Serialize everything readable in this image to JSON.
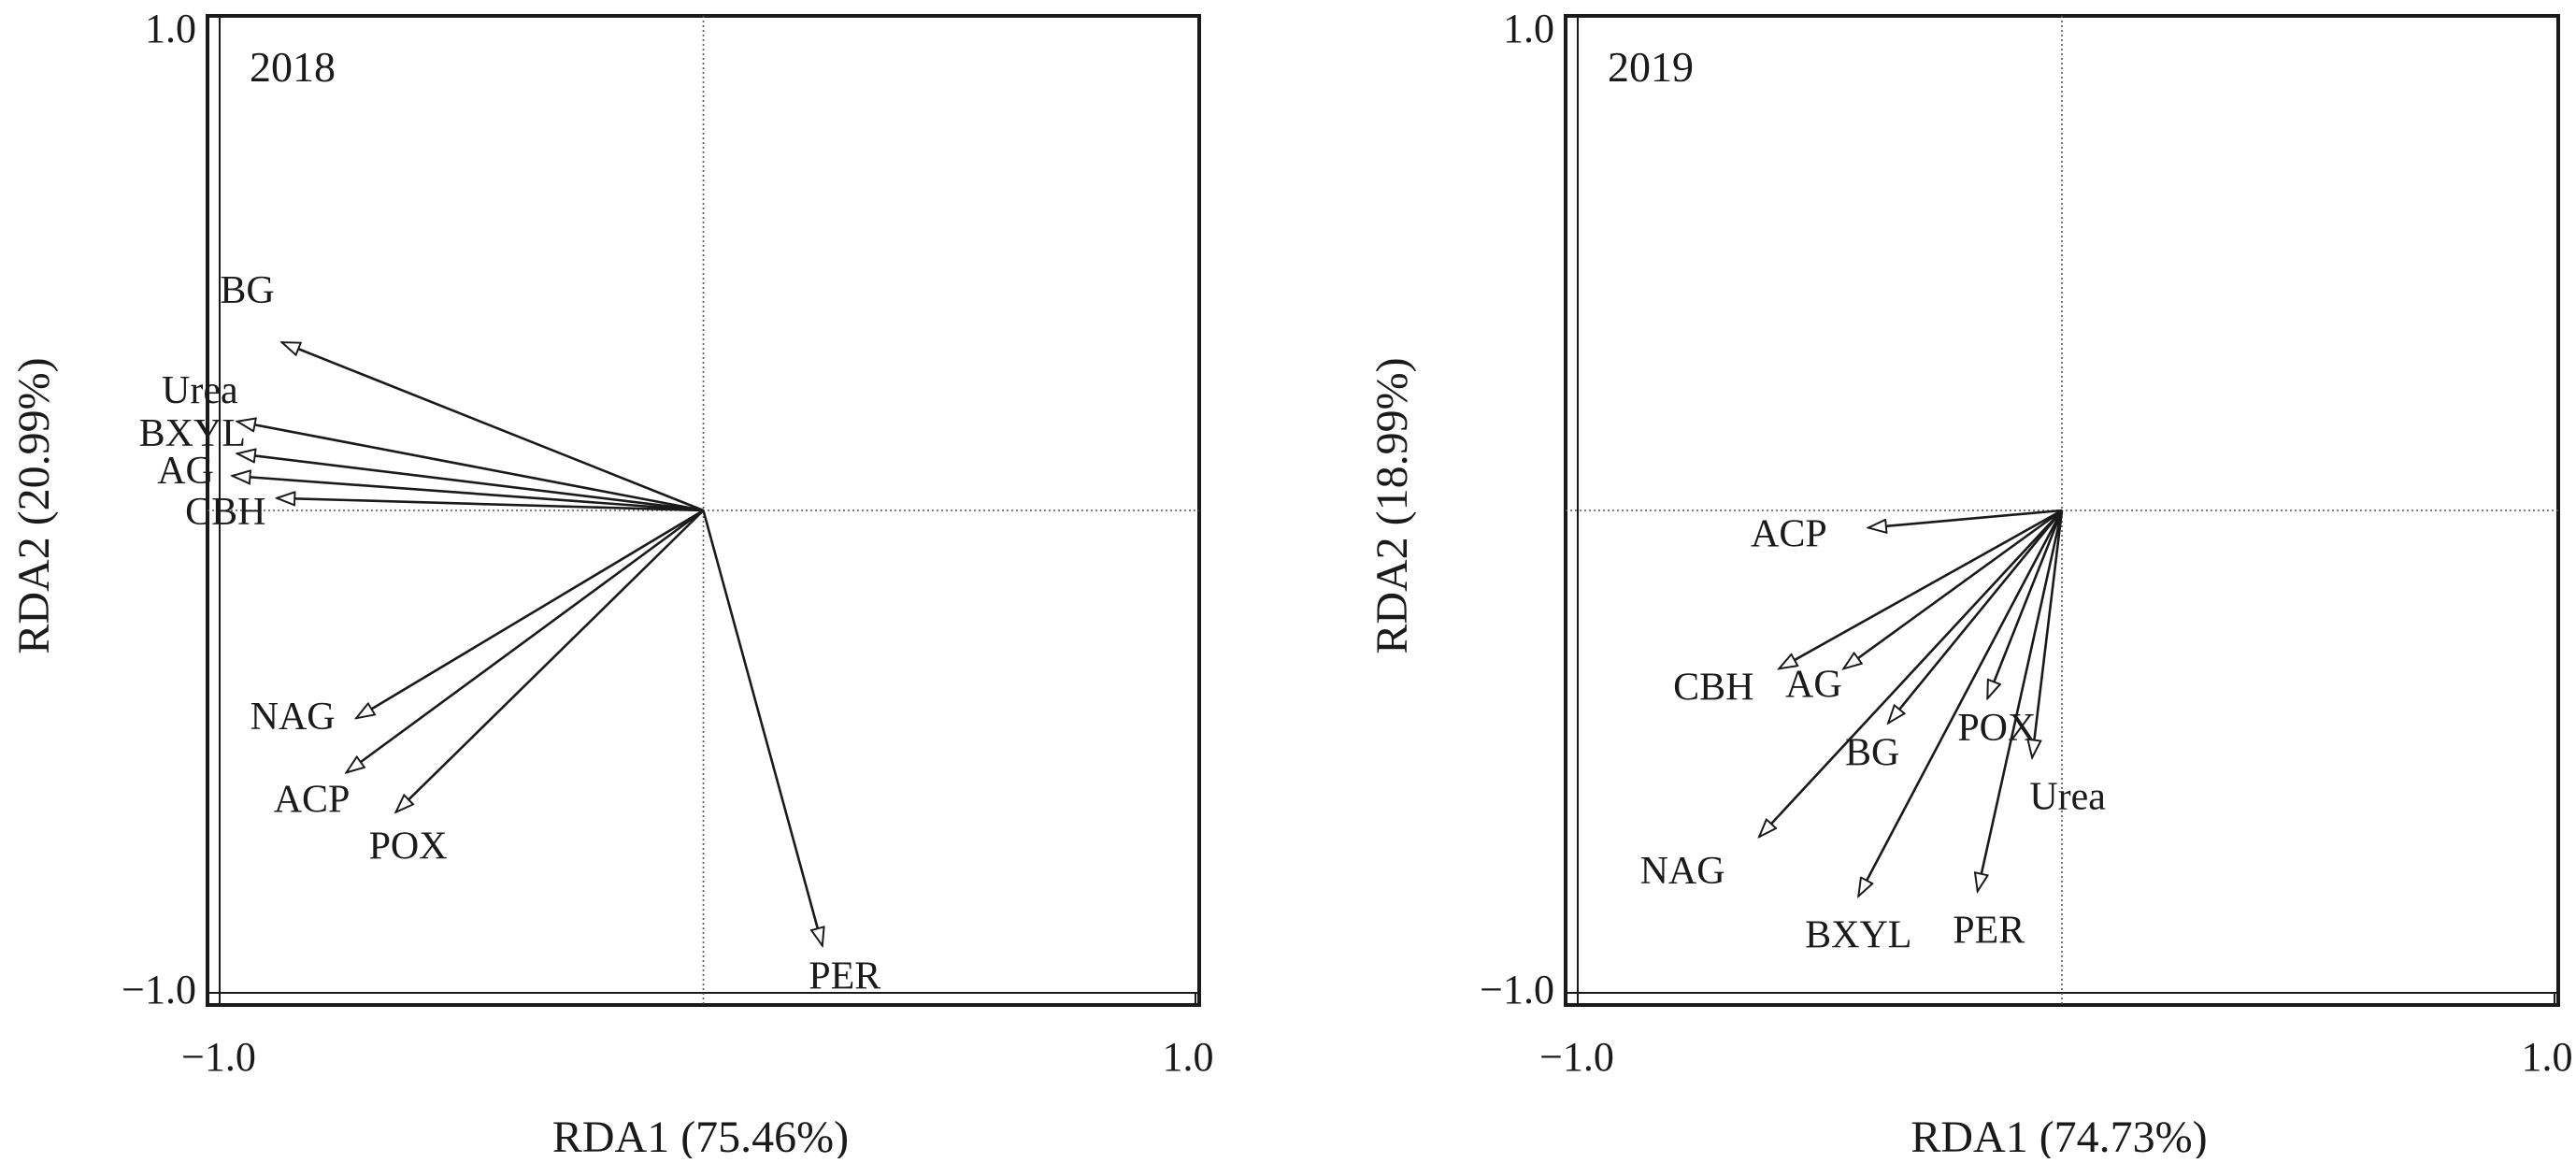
{
  "chart_data": [
    {
      "type": "biplot",
      "title": "2018",
      "xlabel": "RDA1 (75.46%)",
      "ylabel": "RDA2 (20.99%)",
      "xlim": [
        -1.0,
        1.0
      ],
      "ylim": [
        -1.0,
        1.0
      ],
      "x_tick_labels": [
        "−1.0",
        "1.0"
      ],
      "y_tick_labels": [
        "1.0",
        "−1.0"
      ],
      "reference_lines": "dotted lines at x=0 and y=0",
      "vectors": [
        {
          "name": "BG",
          "x": -0.85,
          "y": 0.34
        },
        {
          "name": "Urea",
          "x": -0.94,
          "y": 0.18
        },
        {
          "name": "BXYL",
          "x": -0.94,
          "y": 0.115
        },
        {
          "name": "AG",
          "x": -0.95,
          "y": 0.07
        },
        {
          "name": "CBH",
          "x": -0.86,
          "y": 0.025
        },
        {
          "name": "NAG",
          "x": -0.7,
          "y": -0.42
        },
        {
          "name": "ACP",
          "x": -0.72,
          "y": -0.53
        },
        {
          "name": "POX",
          "x": -0.62,
          "y": -0.61
        },
        {
          "name": "PER",
          "x": 0.24,
          "y": -0.88
        }
      ]
    },
    {
      "type": "biplot",
      "title": "2019",
      "xlabel": "RDA1 (74.73%)",
      "ylabel": "RDA2 (18.99%)",
      "xlim": [
        -1.0,
        1.0
      ],
      "ylim": [
        -1.0,
        1.0
      ],
      "x_tick_labels": [
        "−1.0",
        "1.0"
      ],
      "y_tick_labels": [
        "1.0",
        "−1.0"
      ],
      "reference_lines": "dotted lines at x=0 and y=0",
      "vectors": [
        {
          "name": "ACP",
          "x": -0.39,
          "y": -0.035
        },
        {
          "name": "CBH",
          "x": -0.57,
          "y": -0.32
        },
        {
          "name": "AG",
          "x": -0.44,
          "y": -0.32
        },
        {
          "name": "BG",
          "x": -0.35,
          "y": -0.43
        },
        {
          "name": "POX",
          "x": -0.15,
          "y": -0.38
        },
        {
          "name": "Urea",
          "x": -0.06,
          "y": -0.5
        },
        {
          "name": "NAG",
          "x": -0.61,
          "y": -0.66
        },
        {
          "name": "BXYL",
          "x": -0.41,
          "y": -0.78
        },
        {
          "name": "PER",
          "x": -0.17,
          "y": -0.77
        }
      ]
    }
  ]
}
